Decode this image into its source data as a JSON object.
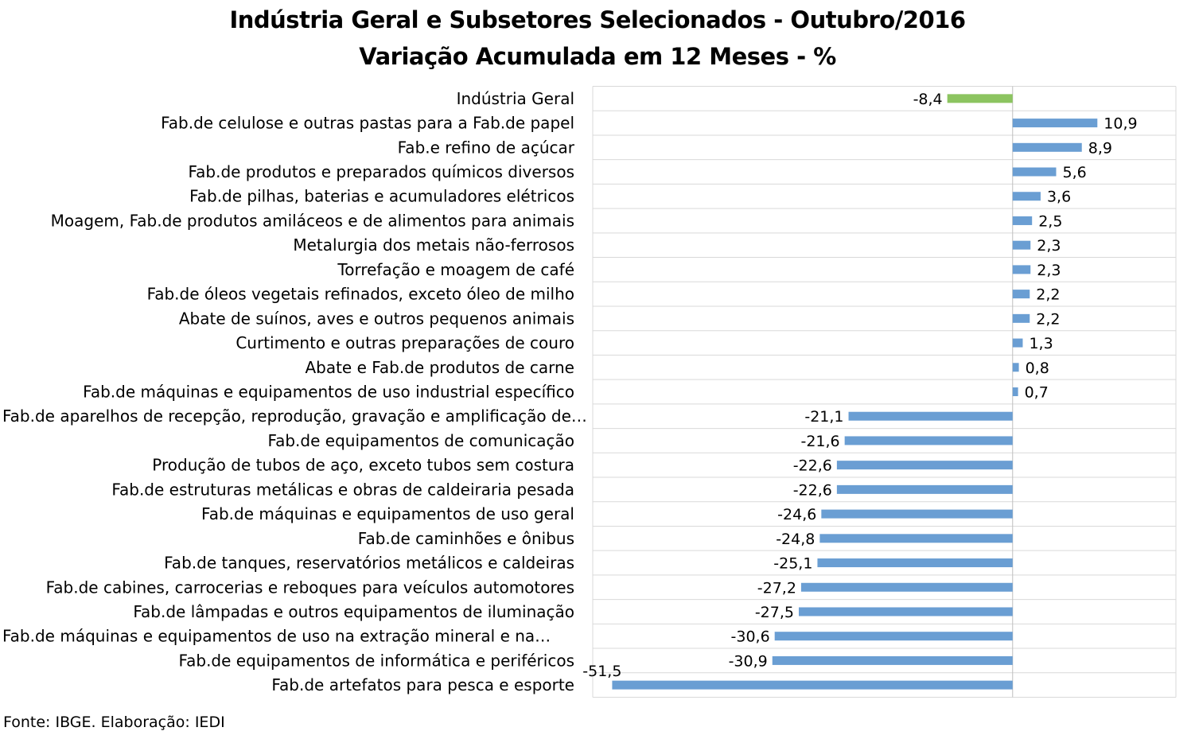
{
  "chart_data": {
    "type": "bar",
    "orientation": "horizontal",
    "title": "Indústria Geral e Subsetores Selecionados - Outubro/2016",
    "subtitle": "Variação Acumulada em 12 Meses - %",
    "categories": [
      "Indústria Geral",
      "Fab.de celulose e outras pastas para a Fab.de papel",
      "Fab.e refino de açúcar",
      "Fab.de produtos e preparados químicos diversos",
      "Fab.de pilhas, baterias e acumuladores elétricos",
      "Moagem, Fab.de produtos amiláceos e de alimentos para animais",
      "Metalurgia dos metais não-ferrosos",
      "Torrefação e moagem de café",
      "Fab.de óleos vegetais refinados, exceto óleo de milho",
      "Abate de suínos, aves e outros pequenos animais",
      "Curtimento e outras preparações de couro",
      "Abate e Fab.de produtos de carne",
      "Fab.de máquinas e equipamentos de uso industrial específico",
      "Fab.de aparelhos de recepção, reprodução, gravação e amplificação de…",
      "Fab.de equipamentos de comunicação",
      "Produção de tubos de aço, exceto tubos sem costura",
      "Fab.de estruturas metálicas e obras de caldeiraria pesada",
      "Fab.de máquinas e equipamentos de uso geral",
      "Fab.de caminhões e ônibus",
      "Fab.de tanques, reservatórios metálicos e caldeiras",
      "Fab.de cabines, carrocerias e reboques para veículos automotores",
      "Fab.de lâmpadas e outros equipamentos de iluminação",
      "Fab.de máquinas e equipamentos de uso na extração mineral e na…",
      "Fab.de equipamentos de informática e periféricos",
      "Fab.de artefatos para pesca e esporte"
    ],
    "values": [
      -8.4,
      10.9,
      8.9,
      5.6,
      3.6,
      2.5,
      2.3,
      2.3,
      2.2,
      2.2,
      1.3,
      0.8,
      0.7,
      -21.1,
      -21.6,
      -22.6,
      -22.6,
      -24.6,
      -24.8,
      -25.1,
      -27.2,
      -27.5,
      -30.6,
      -30.9,
      -51.5
    ],
    "data_labels": [
      "-8,4",
      "10,9",
      "8,9",
      "5,6",
      "3,6",
      "2,5",
      "2,3",
      "2,3",
      "2,2",
      "2,2",
      "1,3",
      "0,8",
      "0,7",
      "-21,1",
      "-21,6",
      "-22,6",
      "-22,6",
      "-24,6",
      "-24,8",
      "-25,1",
      "-27,2",
      "-27,5",
      "-30,6",
      "-30,9",
      "-51,5"
    ],
    "highlight_index": 0,
    "colors": {
      "bar": "#6a9ed3",
      "highlight": "#8cc460",
      "grid": "#d9d9d9",
      "axis": "#bfbfbf"
    },
    "grid": true,
    "legend": "none",
    "xlim": [
      -54,
      21
    ]
  },
  "source": "Fonte: IBGE. Elaboração: IEDI"
}
